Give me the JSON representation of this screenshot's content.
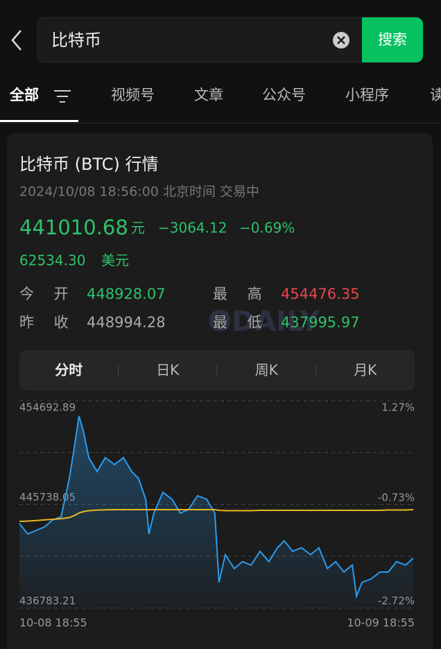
{
  "search": {
    "query": "比特币",
    "button": "搜索"
  },
  "tabs": [
    "全部",
    "视频号",
    "文章",
    "公众号",
    "小程序",
    "读"
  ],
  "card": {
    "title": "比特币 (BTC) 行情",
    "timestamp": "2024/10/08 18:56:00 北京时间 交易中",
    "price": "441010.68",
    "price_unit": "元",
    "change": "−3064.12",
    "change_pct": "−0.69%",
    "usd_price": "62534.30",
    "usd_unit": "美元",
    "stats": [
      {
        "label": "今 开",
        "value": "448928.07"
      },
      {
        "label": "最 高",
        "value": "454476.35"
      },
      {
        "label": "昨 收",
        "value": "448994.28"
      },
      {
        "label": "最 低",
        "value": "437995.97"
      }
    ],
    "watermark": "ODAILY",
    "period_tabs": [
      "分时",
      "日K",
      "周K",
      "月K"
    ]
  },
  "chart_data": {
    "type": "line",
    "x": [
      0,
      30,
      61,
      91,
      121,
      152,
      182,
      202,
      217,
      232,
      253,
      283,
      313,
      346,
      379,
      409,
      434,
      460,
      472,
      490,
      523,
      556,
      586,
      616,
      649,
      682,
      712,
      727,
      750,
      783,
      813,
      844,
      877,
      909,
      940,
      965,
      995,
      1028,
      1061,
      1091,
      1122,
      1152,
      1182,
      1213,
      1228,
      1248,
      1281,
      1314,
      1344,
      1374,
      1407,
      1435
    ],
    "xlim": [
      0,
      1440
    ],
    "xticks": [
      {
        "value": 0,
        "label": "10-08 18:55"
      },
      {
        "value": 1440,
        "label": "10-09 18:55"
      }
    ],
    "ylim": [
      436783.21,
      454692.89
    ],
    "yticks": [
      454692.89,
      445738.05,
      436783.21
    ],
    "y2lim": [
      -2.72,
      1.27
    ],
    "y2ticks": [
      {
        "value": 1.27,
        "label": "1.27%"
      },
      {
        "value": -0.73,
        "label": "-0.73%"
      },
      {
        "value": -2.72,
        "label": "-2.72%"
      }
    ],
    "grid": true,
    "series": [
      {
        "color": "#2b9cf0",
        "values": [
          444091,
          443192,
          443492,
          443791,
          444390,
          444690,
          447984,
          450979,
          453375,
          452177,
          449781,
          448583,
          449781,
          449182,
          449781,
          448583,
          447984,
          446187,
          443192,
          444989,
          446786,
          446187,
          444989,
          445289,
          446487,
          446187,
          444989,
          438999,
          441395,
          440197,
          440796,
          440497,
          441695,
          440796,
          441994,
          442593,
          441695,
          441994,
          441395,
          441994,
          440197,
          440796,
          439898,
          440497,
          437801,
          438999,
          439299,
          439898,
          439898,
          440796,
          440497,
          441096
        ]
      },
      {
        "color": "#e8b923",
        "values": [
          444271,
          444300,
          444350,
          444400,
          444450,
          444510,
          444600,
          444800,
          445000,
          445109,
          445200,
          445250,
          445270,
          445289,
          445289,
          445289,
          445289,
          445289,
          445289,
          445289,
          445289,
          445289,
          445289,
          445289,
          445289,
          445289,
          445289,
          445230,
          445200,
          445200,
          445200,
          445200,
          445230,
          445230,
          445230,
          445230,
          445230,
          445230,
          445230,
          445230,
          445230,
          445230,
          445230,
          445230,
          445230,
          445230,
          445230,
          445230,
          445260,
          445260,
          445260,
          445289
        ]
      }
    ]
  }
}
